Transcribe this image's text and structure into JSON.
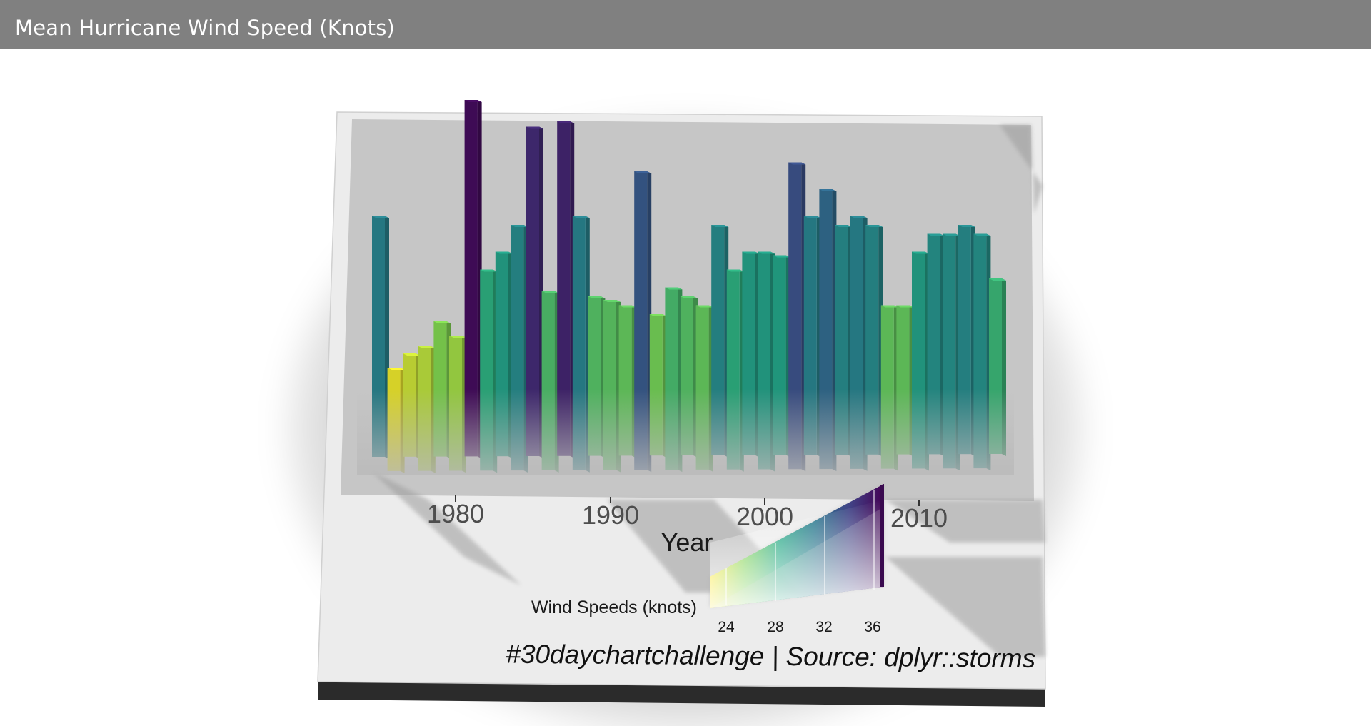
{
  "window": {
    "title": "Mean Hurricane Wind Speed (Knots)"
  },
  "chart_data": {
    "type": "bar",
    "rendering": "3d",
    "xlabel": "Year",
    "ylabel": "",
    "x_ticks": [
      "1980",
      "1990",
      "2000",
      "2010"
    ],
    "x": [
      1975,
      1976,
      1977,
      1978,
      1979,
      1980,
      1981,
      1982,
      1983,
      1984,
      1985,
      1986,
      1987,
      1988,
      1989,
      1990,
      1991,
      1992,
      1993,
      1994,
      1995,
      1996,
      1997,
      1998,
      1999,
      2000,
      2001,
      2002,
      2003,
      2004,
      2005,
      2006,
      2007,
      2008,
      2009,
      2010,
      2011,
      2012,
      2013,
      2014,
      2015
    ],
    "values": [
      31.5,
      23.0,
      23.8,
      24.2,
      25.6,
      24.8,
      38.0,
      28.5,
      29.5,
      31.0,
      36.5,
      27.3,
      36.8,
      31.5,
      27.0,
      26.8,
      26.5,
      34.0,
      26.0,
      27.5,
      27.0,
      26.5,
      31.0,
      28.5,
      29.5,
      29.5,
      29.3,
      34.5,
      31.5,
      33.0,
      31.0,
      31.5,
      31.0,
      26.5,
      26.5,
      29.5,
      30.5,
      30.5,
      31.0,
      30.5,
      28.0
    ],
    "color_scale": {
      "title": "Wind Speeds (knots)",
      "ticks": [
        "24",
        "28",
        "32",
        "36"
      ],
      "min": 22.5,
      "max": 38.5,
      "palette": [
        "#fde725",
        "#7ad151",
        "#22a884",
        "#2a788e",
        "#414487",
        "#440154"
      ]
    },
    "caption": "#30daychartchallenge | Source: dplyr::storms",
    "grid": false
  }
}
